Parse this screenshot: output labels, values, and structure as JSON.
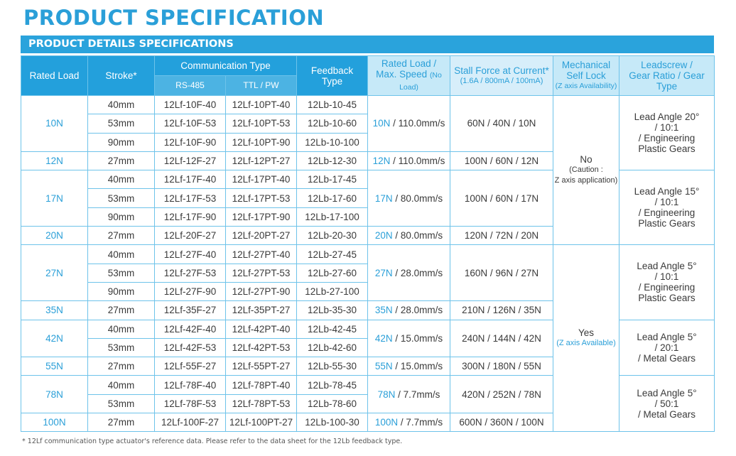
{
  "title": "PRODUCT SPECIFICATION",
  "section": "PRODUCT DETAILS SPECIFICATIONS",
  "headers": {
    "rated_load": "Rated Load",
    "stroke": "Stroke*",
    "communication_type": "Communication Type",
    "rs485": "RS-485",
    "ttl_pw": "TTL / PW",
    "feedback_type_1": "Feedback",
    "feedback_type_2": "Type",
    "rated_load_speed_1": "Rated Load /",
    "rated_load_speed_2": "Max. Speed",
    "rated_load_speed_3": "(No Load)",
    "stall_force_1": "Stall Force at Current*",
    "stall_force_2": "(1.6A / 800mA / 100mA)",
    "mech_lock_1": "Mechanical",
    "mech_lock_2": "Self Lock",
    "mech_lock_3": "(Z axis Availability)",
    "leadscrew_1": "Leadscrew /",
    "leadscrew_2": "Gear Ratio / Gear Type"
  },
  "rows": [
    {
      "load": "10N",
      "stroke": "40mm",
      "rs485": "12Lf-10F-40",
      "ttl": "12Lf-10PT-40",
      "fb": "12Lb-10-45"
    },
    {
      "stroke": "53mm",
      "rs485": "12Lf-10F-53",
      "ttl": "12Lf-10PT-53",
      "fb": "12Lb-10-60"
    },
    {
      "stroke": "90mm",
      "rs485": "12Lf-10F-90",
      "ttl": "12Lf-10PT-90",
      "fb": "12Lb-10-100"
    },
    {
      "load": "12N",
      "stroke": "27mm",
      "rs485": "12Lf-12F-27",
      "ttl": "12Lf-12PT-27",
      "fb": "12Lb-12-30"
    },
    {
      "load": "17N",
      "stroke": "40mm",
      "rs485": "12Lf-17F-40",
      "ttl": "12Lf-17PT-40",
      "fb": "12Lb-17-45"
    },
    {
      "stroke": "53mm",
      "rs485": "12Lf-17F-53",
      "ttl": "12Lf-17PT-53",
      "fb": "12Lb-17-60"
    },
    {
      "stroke": "90mm",
      "rs485": "12Lf-17F-90",
      "ttl": "12Lf-17PT-90",
      "fb": "12Lb-17-100"
    },
    {
      "load": "20N",
      "stroke": "27mm",
      "rs485": "12Lf-20F-27",
      "ttl": "12Lf-20PT-27",
      "fb": "12Lb-20-30"
    },
    {
      "load": "27N",
      "stroke": "40mm",
      "rs485": "12Lf-27F-40",
      "ttl": "12Lf-27PT-40",
      "fb": "12Lb-27-45"
    },
    {
      "stroke": "53mm",
      "rs485": "12Lf-27F-53",
      "ttl": "12Lf-27PT-53",
      "fb": "12Lb-27-60"
    },
    {
      "stroke": "90mm",
      "rs485": "12Lf-27F-90",
      "ttl": "12Lf-27PT-90",
      "fb": "12Lb-27-100"
    },
    {
      "load": "35N",
      "stroke": "27mm",
      "rs485": "12Lf-35F-27",
      "ttl": "12Lf-35PT-27",
      "fb": "12Lb-35-30"
    },
    {
      "load": "42N",
      "stroke": "40mm",
      "rs485": "12Lf-42F-40",
      "ttl": "12Lf-42PT-40",
      "fb": "12Lb-42-45"
    },
    {
      "stroke": "53mm",
      "rs485": "12Lf-42F-53",
      "ttl": "12Lf-42PT-53",
      "fb": "12Lb-42-60"
    },
    {
      "load": "55N",
      "stroke": "27mm",
      "rs485": "12Lf-55F-27",
      "ttl": "12Lf-55PT-27",
      "fb": "12Lb-55-30"
    },
    {
      "load": "78N",
      "stroke": "40mm",
      "rs485": "12Lf-78F-40",
      "ttl": "12Lf-78PT-40",
      "fb": "12Lb-78-45"
    },
    {
      "stroke": "53mm",
      "rs485": "12Lf-78F-53",
      "ttl": "12Lf-78PT-53",
      "fb": "12Lb-78-60"
    },
    {
      "load": "100N",
      "stroke": "27mm",
      "rs485": "12Lf-100F-27",
      "ttl": "12Lf-100PT-27",
      "fb": "12Lb-100-30"
    }
  ],
  "speed": [
    {
      "load": "10N",
      "rest": " / 110.0mm/s"
    },
    {
      "load": "12N",
      "rest": " / 110.0mm/s"
    },
    {
      "load": "17N",
      "rest": " / 80.0mm/s"
    },
    {
      "load": "20N",
      "rest": " / 80.0mm/s"
    },
    {
      "load": "27N",
      "rest": " / 28.0mm/s"
    },
    {
      "load": "35N",
      "rest": " / 28.0mm/s"
    },
    {
      "load": "42N",
      "rest": " / 15.0mm/s"
    },
    {
      "load": "55N",
      "rest": " / 15.0mm/s"
    },
    {
      "load": "78N",
      "rest": " / 7.7mm/s"
    },
    {
      "load": "100N",
      "rest": " / 7.7mm/s"
    }
  ],
  "stall": [
    "60N / 40N / 10N",
    "100N / 60N / 12N",
    "100N / 60N / 17N",
    "120N / 72N / 20N",
    "160N / 96N / 27N",
    "210N / 126N / 35N",
    "240N / 144N / 42N",
    "300N / 180N / 55N",
    "420N / 252N / 78N",
    "600N / 360N / 100N"
  ],
  "lock": [
    {
      "value": "No",
      "note_1": "(Caution :",
      "note_2": "Z axis application)"
    },
    {
      "value": "Yes",
      "note_1": "(Z axis Available)"
    }
  ],
  "leadscrew": [
    {
      "l1": "Lead Angle 20°",
      "l2": "/ 10:1",
      "l3": "/ Engineering",
      "l4": "Plastic Gears"
    },
    {
      "l1": "Lead Angle 15°",
      "l2": "/ 10:1",
      "l3": "/ Engineering",
      "l4": "Plastic Gears"
    },
    {
      "l1": "Lead Angle 5°",
      "l2": "/ 10:1",
      "l3": "/ Engineering",
      "l4": "Plastic Gears"
    },
    {
      "l1": "Lead Angle 5°",
      "l2": "/ 20:1",
      "l3": "/ Metal Gears"
    },
    {
      "l1": "Lead Angle 5°",
      "l2": "/ 50:1",
      "l3": "/ Metal Gears"
    }
  ],
  "footnote": "* 12Lf communication type actuator's reference data. Please refer to the data sheet for the 12Lb feedback type.",
  "colors": {
    "accent": "#2aa3dc",
    "header_light": "#c6e9f8",
    "border": "#6ec3ea"
  }
}
